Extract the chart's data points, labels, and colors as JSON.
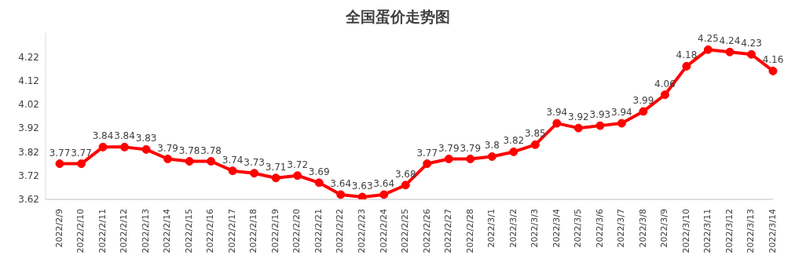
{
  "chart_data": {
    "type": "line",
    "title": "全国蛋价走势图",
    "categories": [
      "2022/2/9",
      "2022/2/10",
      "2022/2/11",
      "2022/2/12",
      "2022/2/13",
      "2022/2/14",
      "2022/2/15",
      "2022/2/16",
      "2022/2/17",
      "2022/2/18",
      "2022/2/19",
      "2022/2/20",
      "2022/2/21",
      "2022/2/22",
      "2022/2/23",
      "2022/2/24",
      "2022/2/25",
      "2022/2/26",
      "2022/2/27",
      "2022/2/28",
      "2022/3/1",
      "2022/3/2",
      "2022/3/3",
      "2022/3/4",
      "2022/3/5",
      "2022/3/6",
      "2022/3/7",
      "2022/3/8",
      "2022/3/9",
      "2022/3/10",
      "2022/3/11",
      "2022/3/12",
      "2022/3/13",
      "2022/3/14"
    ],
    "values": [
      3.77,
      3.77,
      3.84,
      3.84,
      3.83,
      3.79,
      3.78,
      3.78,
      3.74,
      3.73,
      3.71,
      3.72,
      3.69,
      3.64,
      3.63,
      3.64,
      3.68,
      3.77,
      3.79,
      3.79,
      3.8,
      3.82,
      3.85,
      3.94,
      3.92,
      3.93,
      3.94,
      3.99,
      4.06,
      4.18,
      4.25,
      4.24,
      4.23,
      4.16
    ],
    "color": "#ff0000",
    "marker": "circle",
    "data_labels": true,
    "grid": false,
    "legend": false,
    "ylim": [
      3.62,
      4.32
    ],
    "yticks": [
      3.62,
      3.72,
      3.82,
      3.92,
      4.02,
      4.12,
      4.22
    ]
  }
}
